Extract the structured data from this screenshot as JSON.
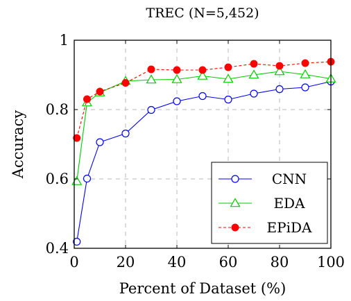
{
  "chart_data": {
    "type": "line",
    "title": "TREC (N=5,452)",
    "xlabel": "Percent of Dataset (%)",
    "ylabel": "Accuracy",
    "xlim": [
      0,
      100
    ],
    "ylim": [
      0.4,
      1.0
    ],
    "xticks": [
      0,
      20,
      40,
      60,
      80,
      100
    ],
    "yticks": [
      0.4,
      0.6,
      0.8,
      1.0
    ],
    "xtick_labels": [
      "0",
      "20",
      "40",
      "60",
      "80",
      "100"
    ],
    "ytick_labels": [
      "0.4",
      "0.6",
      "0.8",
      "1"
    ],
    "grid": true,
    "legend_position": "bottom-right",
    "x": [
      1,
      5,
      10,
      20,
      30,
      40,
      50,
      60,
      70,
      80,
      90,
      100
    ],
    "series": [
      {
        "name": "CNN",
        "color": "#0000ff",
        "line_style": "solid",
        "marker": "circle-open",
        "values": [
          0.419,
          0.601,
          0.706,
          0.731,
          0.799,
          0.824,
          0.839,
          0.829,
          0.846,
          0.859,
          0.864,
          0.881
        ]
      },
      {
        "name": "EDA",
        "color": "#00cc00",
        "line_style": "solid",
        "marker": "triangle-open",
        "values": [
          0.593,
          0.82,
          0.849,
          0.882,
          0.886,
          0.887,
          0.897,
          0.888,
          0.9,
          0.91,
          0.901,
          0.889
        ]
      },
      {
        "name": "EPiDA",
        "color": "#ff0000",
        "line_style": "dashed",
        "marker": "circle-filled",
        "values": [
          0.718,
          0.83,
          0.852,
          0.877,
          0.916,
          0.914,
          0.914,
          0.922,
          0.932,
          0.926,
          0.934,
          0.938
        ]
      }
    ]
  }
}
